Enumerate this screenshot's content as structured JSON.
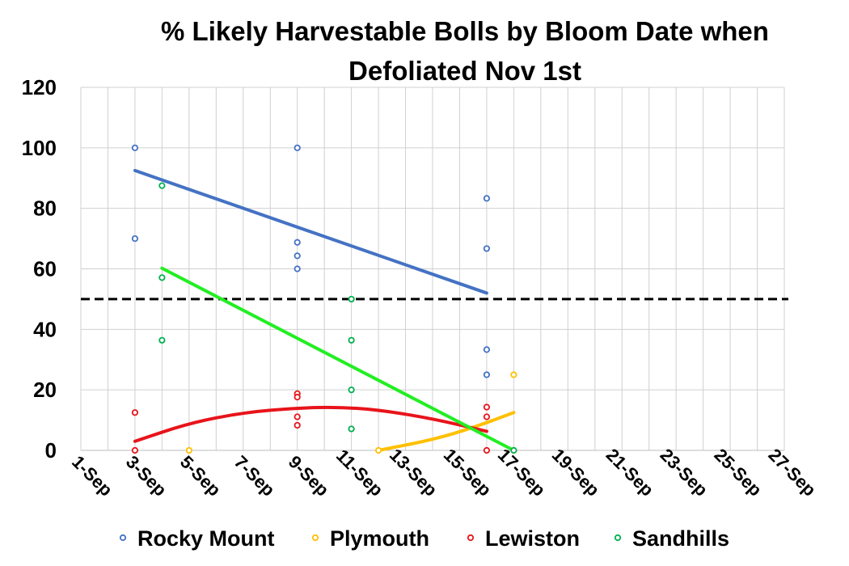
{
  "chart_data": {
    "type": "scatter",
    "title": "% Likely Harvestable Bolls by Bloom Date when Defoliated Nov 1st",
    "title_lines": [
      "% Likely Harvestable Bolls by Bloom Date when",
      "Defoliated Nov 1st"
    ],
    "xlabel": "",
    "ylabel": "",
    "ylim": [
      0,
      120
    ],
    "yticks": [
      0,
      20,
      40,
      60,
      80,
      100,
      120
    ],
    "xlim_day": [
      1,
      27
    ],
    "xticks": [
      {
        "day": 1,
        "label": "1-Sep"
      },
      {
        "day": 3,
        "label": "3-Sep"
      },
      {
        "day": 5,
        "label": "5-Sep"
      },
      {
        "day": 7,
        "label": "7-Sep"
      },
      {
        "day": 9,
        "label": "9-Sep"
      },
      {
        "day": 11,
        "label": "11-Sep"
      },
      {
        "day": 13,
        "label": "13-Sep"
      },
      {
        "day": 15,
        "label": "15-Sep"
      },
      {
        "day": 17,
        "label": "17-Sep"
      },
      {
        "day": 19,
        "label": "19-Sep"
      },
      {
        "day": 21,
        "label": "21-Sep"
      },
      {
        "day": 23,
        "label": "23-Sep"
      },
      {
        "day": 25,
        "label": "25-Sep"
      },
      {
        "day": 27,
        "label": "27-Sep"
      }
    ],
    "grid": true,
    "legend_position": "bottom",
    "reference_line": {
      "y": 50,
      "style": "dashed",
      "color": "#000000"
    },
    "series": [
      {
        "name": "Rocky Mount",
        "color": "#4472C4",
        "points": [
          [
            3,
            100
          ],
          [
            3,
            70
          ],
          [
            9,
            100
          ],
          [
            9,
            68.75
          ],
          [
            9,
            64.3
          ],
          [
            9,
            60
          ],
          [
            16,
            83.3
          ],
          [
            16,
            66.7
          ],
          [
            16,
            33.3
          ],
          [
            16,
            25
          ]
        ],
        "trend": {
          "kind": "linear",
          "from": [
            3,
            92.5
          ],
          "to": [
            16,
            52
          ]
        }
      },
      {
        "name": "Plymouth",
        "color": "#FFC000",
        "points": [
          [
            5,
            0
          ],
          [
            12,
            0
          ],
          [
            17,
            25
          ],
          [
            17,
            0
          ]
        ],
        "trend": {
          "kind": "quadratic",
          "points": [
            [
              12,
              0
            ],
            [
              14,
              3.5
            ],
            [
              15.5,
              7.5
            ],
            [
              17,
              12.5
            ]
          ]
        }
      },
      {
        "name": "Lewiston",
        "color": "#E8141B",
        "points": [
          [
            3,
            12.5
          ],
          [
            3,
            0
          ],
          [
            9,
            18.75
          ],
          [
            9,
            17.6
          ],
          [
            9,
            11.1
          ],
          [
            9,
            8.3
          ],
          [
            16,
            14.3
          ],
          [
            16,
            11.1
          ],
          [
            16,
            0
          ]
        ],
        "trend": {
          "kind": "quadratic",
          "points": [
            [
              3,
              3
            ],
            [
              5,
              9
            ],
            [
              7,
              12.5
            ],
            [
              9,
              14
            ],
            [
              10.5,
              14.3
            ],
            [
              12,
              13.4
            ],
            [
              14,
              10.5
            ],
            [
              16,
              6.3
            ]
          ]
        }
      },
      {
        "name": "Sandhills",
        "color": "#00B050",
        "points": [
          [
            4,
            87.5
          ],
          [
            4,
            57.1
          ],
          [
            4,
            36.4
          ],
          [
            11,
            50
          ],
          [
            11,
            36.4
          ],
          [
            11,
            20
          ],
          [
            11,
            7.1
          ],
          [
            17,
            0
          ]
        ],
        "trend": {
          "kind": "linear",
          "from": [
            4,
            60.2
          ],
          "to": [
            17,
            0
          ],
          "color": "#22EE22"
        }
      }
    ]
  }
}
